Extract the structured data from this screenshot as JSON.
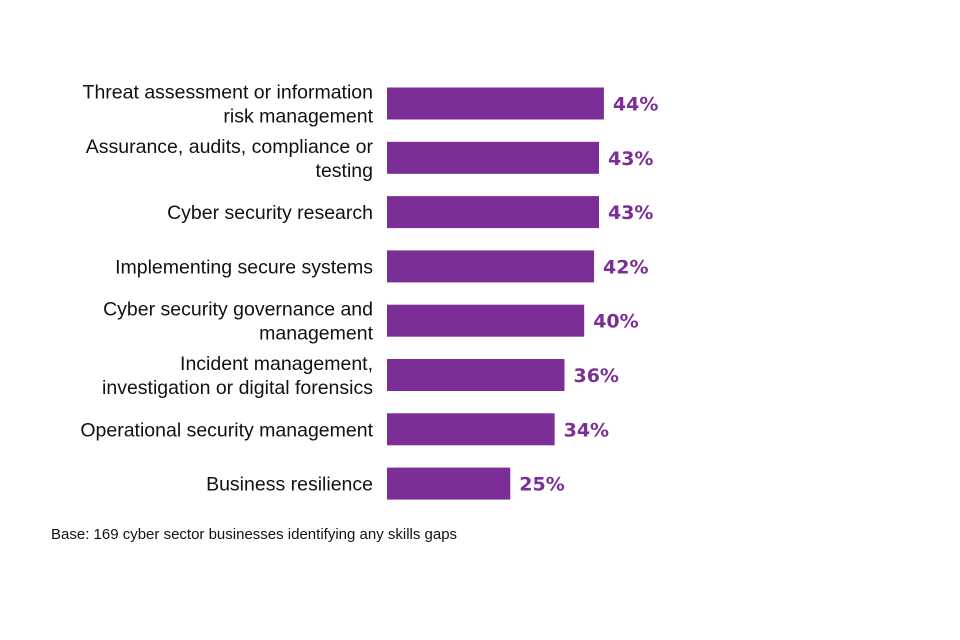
{
  "chart_data": {
    "type": "bar",
    "orientation": "horizontal",
    "categories": [
      [
        "Threat assessment or information",
        "risk management"
      ],
      [
        "Assurance, audits, compliance or",
        "testing"
      ],
      [
        "Cyber security research"
      ],
      [
        "Implementing secure systems"
      ],
      [
        "Cyber security governance and",
        "management"
      ],
      [
        "Incident management,",
        "investigation or digital forensics"
      ],
      [
        "Operational security management"
      ],
      [
        "Business resilience"
      ]
    ],
    "values": [
      44,
      43,
      43,
      42,
      40,
      36,
      34,
      25
    ],
    "value_labels": [
      "44%",
      "43%",
      "43%",
      "42%",
      "40%",
      "36%",
      "34%",
      "25%"
    ],
    "unit": "%",
    "xlim": [
      0,
      100
    ],
    "grid": false,
    "legend": "none",
    "bar_color": "#7b2f96",
    "label_color": "#7b2f96"
  },
  "footnote": "Base: 169 cyber sector businesses identifying any skills gaps"
}
